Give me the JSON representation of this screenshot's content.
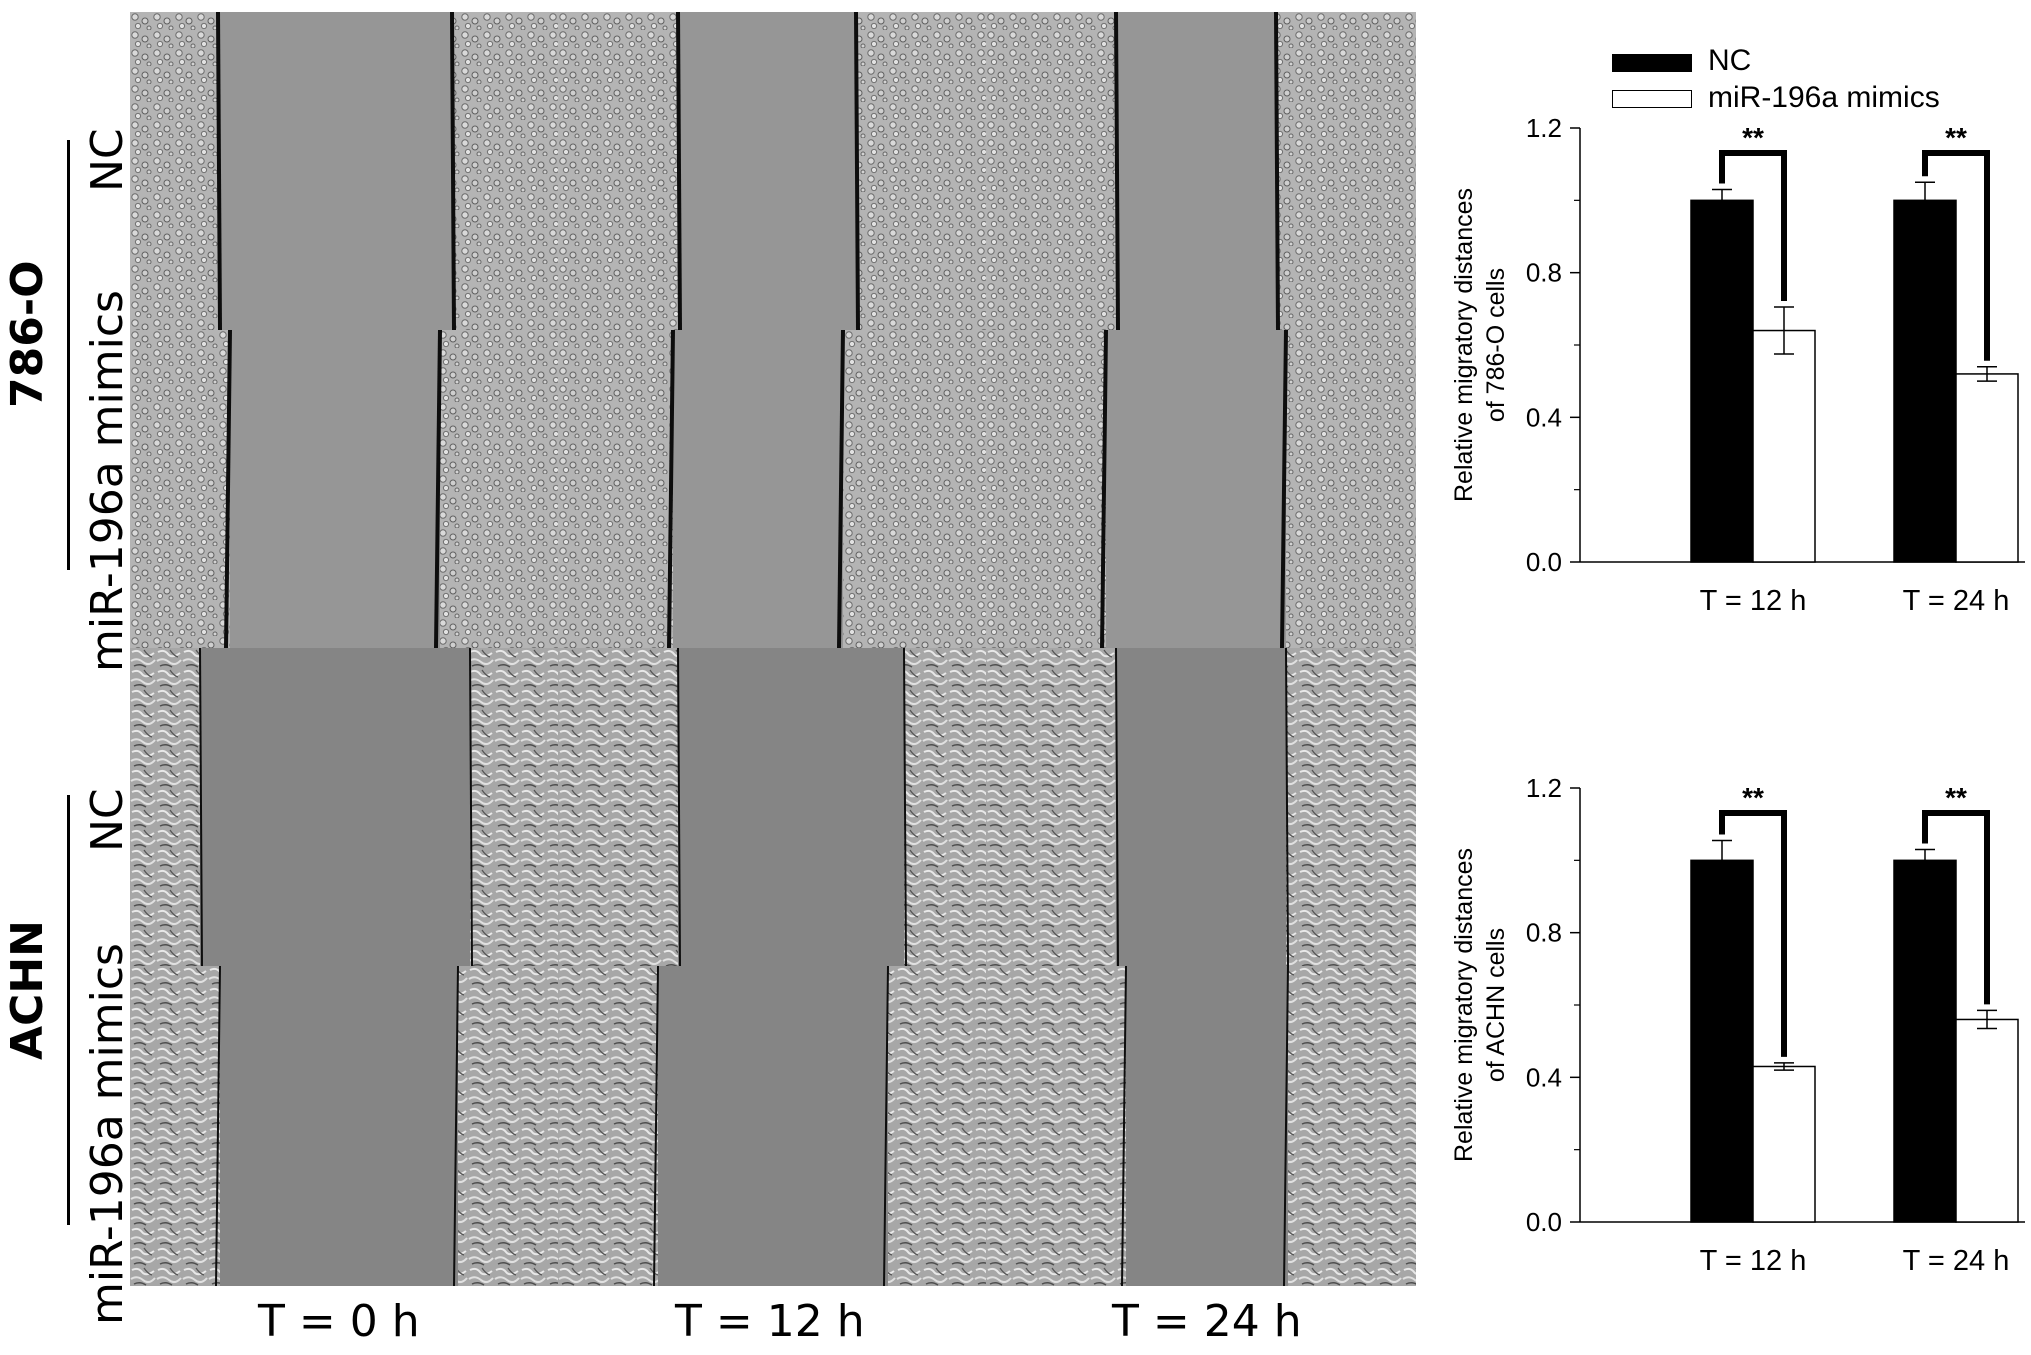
{
  "figure": {
    "cell_lines": [
      {
        "name": "786-O",
        "rows": [
          "NC",
          "miR-196a mimics"
        ]
      },
      {
        "name": "ACHN",
        "rows": [
          "NC",
          "miR-196a mimics"
        ]
      }
    ],
    "time_labels": [
      "T = 0 h",
      "T = 12 h",
      "T = 24 h"
    ]
  },
  "legend": {
    "items": [
      {
        "label": "NC",
        "color": "#000000"
      },
      {
        "label": "miR-196a mimics",
        "color": "#ffffff"
      }
    ]
  },
  "chart_data": [
    {
      "type": "bar",
      "ylabel_line1": "Relative migratory distances",
      "ylabel_line2": "of 786-O cells",
      "categories": [
        "T = 12 h",
        "T = 24 h"
      ],
      "series": [
        {
          "name": "NC",
          "values": [
            1.0,
            1.0
          ],
          "errors": [
            0.03,
            0.05
          ],
          "color": "#000000"
        },
        {
          "name": "miR-196a mimics",
          "values": [
            0.64,
            0.52
          ],
          "errors": [
            0.065,
            0.02
          ],
          "color": "#ffffff"
        }
      ],
      "yticks": [
        "0.0",
        "0.4",
        "0.8",
        "1.2"
      ],
      "ylim": [
        0,
        1.2
      ],
      "significance": [
        "**",
        "**"
      ]
    },
    {
      "type": "bar",
      "ylabel_line1": "Relative migratory distances",
      "ylabel_line2": "of ACHN cells",
      "categories": [
        "T = 12 h",
        "T = 24 h"
      ],
      "series": [
        {
          "name": "NC",
          "values": [
            1.0,
            1.0
          ],
          "errors": [
            0.055,
            0.03
          ],
          "color": "#000000"
        },
        {
          "name": "miR-196a mimics",
          "values": [
            0.43,
            0.56
          ],
          "errors": [
            0.01,
            0.025
          ],
          "color": "#ffffff"
        }
      ],
      "yticks": [
        "0.0",
        "0.4",
        "0.8",
        "1.2"
      ],
      "ylim": [
        0,
        1.2
      ],
      "significance": [
        "**",
        "**"
      ]
    }
  ]
}
